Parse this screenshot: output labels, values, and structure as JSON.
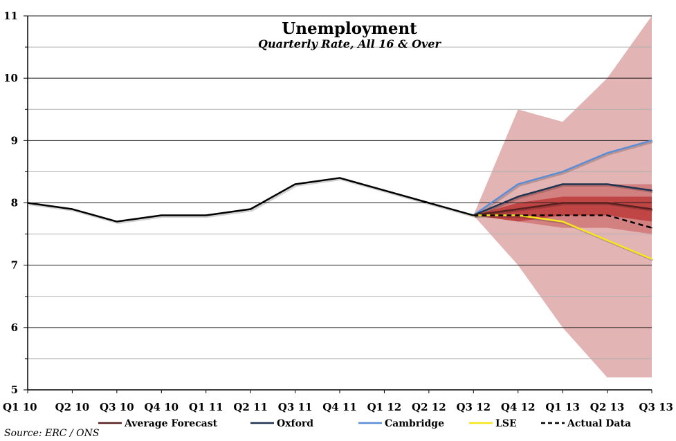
{
  "chart_data": {
    "type": "line",
    "title": "Unemployment",
    "subtitle": "Quarterly Rate, All 16 & Over",
    "categories": [
      "Q1 10",
      "Q2 10",
      "Q3 10",
      "Q4 10",
      "Q1 11",
      "Q2 11",
      "Q3 11",
      "Q4 11",
      "Q1 12",
      "Q2 12",
      "Q3 12",
      "Q4 12",
      "Q1 13",
      "Q2 13",
      "Q3 13"
    ],
    "ylim": [
      5,
      11
    ],
    "yticks": [
      5,
      6,
      7,
      8,
      9,
      10,
      11
    ],
    "grid": true,
    "series": [
      {
        "name": "Historical",
        "color": "#000000",
        "dash": false,
        "in_legend": false,
        "values": [
          8.0,
          7.9,
          7.7,
          7.8,
          7.8,
          7.9,
          8.3,
          8.4,
          8.2,
          8.0,
          7.8,
          null,
          null,
          null,
          null
        ]
      },
      {
        "name": "Average Forecast",
        "color": "#5a1f1f",
        "dash": false,
        "in_legend": true,
        "values": [
          null,
          null,
          null,
          null,
          null,
          null,
          null,
          null,
          null,
          null,
          7.8,
          7.9,
          8.0,
          8.0,
          7.9
        ]
      },
      {
        "name": "Oxford",
        "color": "#1f3350",
        "dash": false,
        "in_legend": true,
        "values": [
          null,
          null,
          null,
          null,
          null,
          null,
          null,
          null,
          null,
          null,
          7.8,
          8.1,
          8.3,
          8.3,
          8.2
        ]
      },
      {
        "name": "Cambridge",
        "color": "#5b8dd6",
        "dash": false,
        "in_legend": true,
        "values": [
          null,
          null,
          null,
          null,
          null,
          null,
          null,
          null,
          null,
          null,
          7.8,
          8.3,
          8.5,
          8.8,
          9.0
        ]
      },
      {
        "name": "LSE",
        "color": "#f5e61e",
        "dash": false,
        "in_legend": true,
        "values": [
          null,
          null,
          null,
          null,
          null,
          null,
          null,
          null,
          null,
          null,
          7.8,
          7.8,
          7.7,
          7.4,
          7.1
        ]
      },
      {
        "name": "Actual Data",
        "color": "#000000",
        "dash": true,
        "in_legend": true,
        "values": [
          null,
          null,
          null,
          null,
          null,
          null,
          null,
          null,
          null,
          null,
          7.8,
          7.8,
          7.8,
          7.8,
          7.6
        ]
      }
    ],
    "bands": [
      {
        "name": "Outer forecast range",
        "color": "#e3b4b4",
        "start_index": 10,
        "upper": [
          7.8,
          9.5,
          9.3,
          10.0,
          11.0
        ],
        "lower": [
          7.8,
          7.0,
          6.0,
          5.2,
          5.2
        ]
      },
      {
        "name": "Middle forecast range",
        "color": "#d28080",
        "start_index": 10,
        "upper": [
          7.8,
          8.1,
          8.3,
          8.3,
          8.3
        ],
        "lower": [
          7.8,
          7.7,
          7.6,
          7.6,
          7.5
        ]
      },
      {
        "name": "Inner forecast range",
        "color": "#c04646",
        "start_index": 10,
        "upper": [
          7.8,
          8.0,
          8.1,
          8.1,
          8.1
        ],
        "lower": [
          7.8,
          7.7,
          7.8,
          7.8,
          7.7
        ]
      }
    ],
    "legend_position": "bottom"
  },
  "source": "Source: ERC / ONS"
}
